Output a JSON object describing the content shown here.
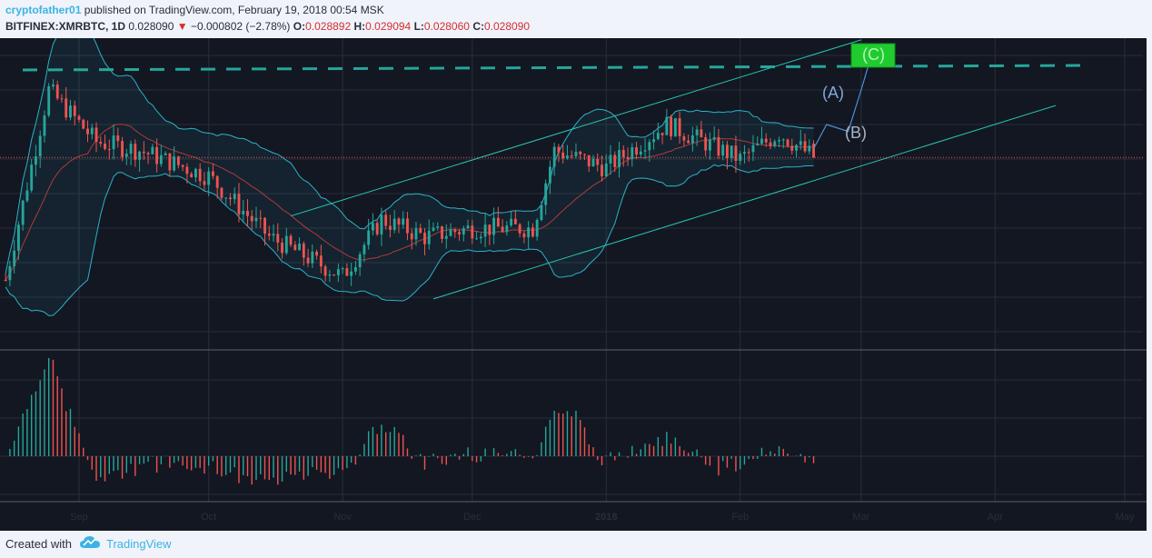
{
  "header": {
    "user": "cryptofather01",
    "published_text": " published on TradingView.com, February 19, 2018 00:54 MSK",
    "symbol": "BITFINEX:XMRBTC, 1D",
    "last": "0.028090",
    "change_arrow": "▼",
    "change": "−0.000802 (−2.78%)",
    "o_label": "O:",
    "o_value": "0.028892",
    "h_label": "H:",
    "h_value": "0.029094",
    "l_label": "L:",
    "l_value": "0.028060",
    "c_label": "C:",
    "c_value": "0.028090"
  },
  "footer": {
    "created_with": "Created with",
    "brand": "TradingView",
    "logo_icon": "tradingview-cloud-icon"
  },
  "colors": {
    "background": "#131722",
    "grid": "#2a2e39",
    "up": "#26a69a",
    "down": "#ef5350",
    "band": "#2bb2c9",
    "trendline": "#26c6b0",
    "dashed_resistance": "#26a69a",
    "price_line": "#ef5350",
    "wave_path": "#4a90d9",
    "label_box": "#1fcc2f"
  },
  "chart_data": {
    "type": "candlestick",
    "x_axis": {
      "ticks": [
        "Sep",
        "Oct",
        "Nov",
        "Dec",
        "2018",
        "Feb",
        "Mar",
        "Apr",
        "May"
      ],
      "tick_dates": [
        "2017-09-01",
        "2017-10-01",
        "2017-11-01",
        "2017-12-01",
        "2018-01-01",
        "2018-02-01",
        "2018-03-01",
        "2018-04-01",
        "2018-05-01"
      ]
    },
    "last_price": 0.02809,
    "price_range_approx": [
      0.017,
      0.035
    ],
    "wave_labels": [
      "(A)",
      "(B)",
      "(C)"
    ],
    "bollinger_bands": true,
    "trendline_channel": true,
    "resistance_dashed_line": true,
    "oscillator_panel": "histogram",
    "approx_series": {
      "close_profile": [
        {
          "date": "2017-08-15",
          "close": 0.021
        },
        {
          "date": "2017-08-25",
          "close": 0.032
        },
        {
          "date": "2017-09-05",
          "close": 0.029
        },
        {
          "date": "2017-09-15",
          "close": 0.0285
        },
        {
          "date": "2017-10-01",
          "close": 0.027
        },
        {
          "date": "2017-10-15",
          "close": 0.0235
        },
        {
          "date": "2017-11-01",
          "close": 0.0212
        },
        {
          "date": "2017-11-10",
          "close": 0.0245
        },
        {
          "date": "2017-11-20",
          "close": 0.0235
        },
        {
          "date": "2017-12-01",
          "close": 0.024
        },
        {
          "date": "2017-12-15",
          "close": 0.024
        },
        {
          "date": "2017-12-20",
          "close": 0.0285
        },
        {
          "date": "2018-01-01",
          "close": 0.0275
        },
        {
          "date": "2018-01-15",
          "close": 0.03
        },
        {
          "date": "2018-02-01",
          "close": 0.028
        },
        {
          "date": "2018-02-10",
          "close": 0.0295
        },
        {
          "date": "2018-02-18",
          "close": 0.0281
        }
      ]
    }
  }
}
